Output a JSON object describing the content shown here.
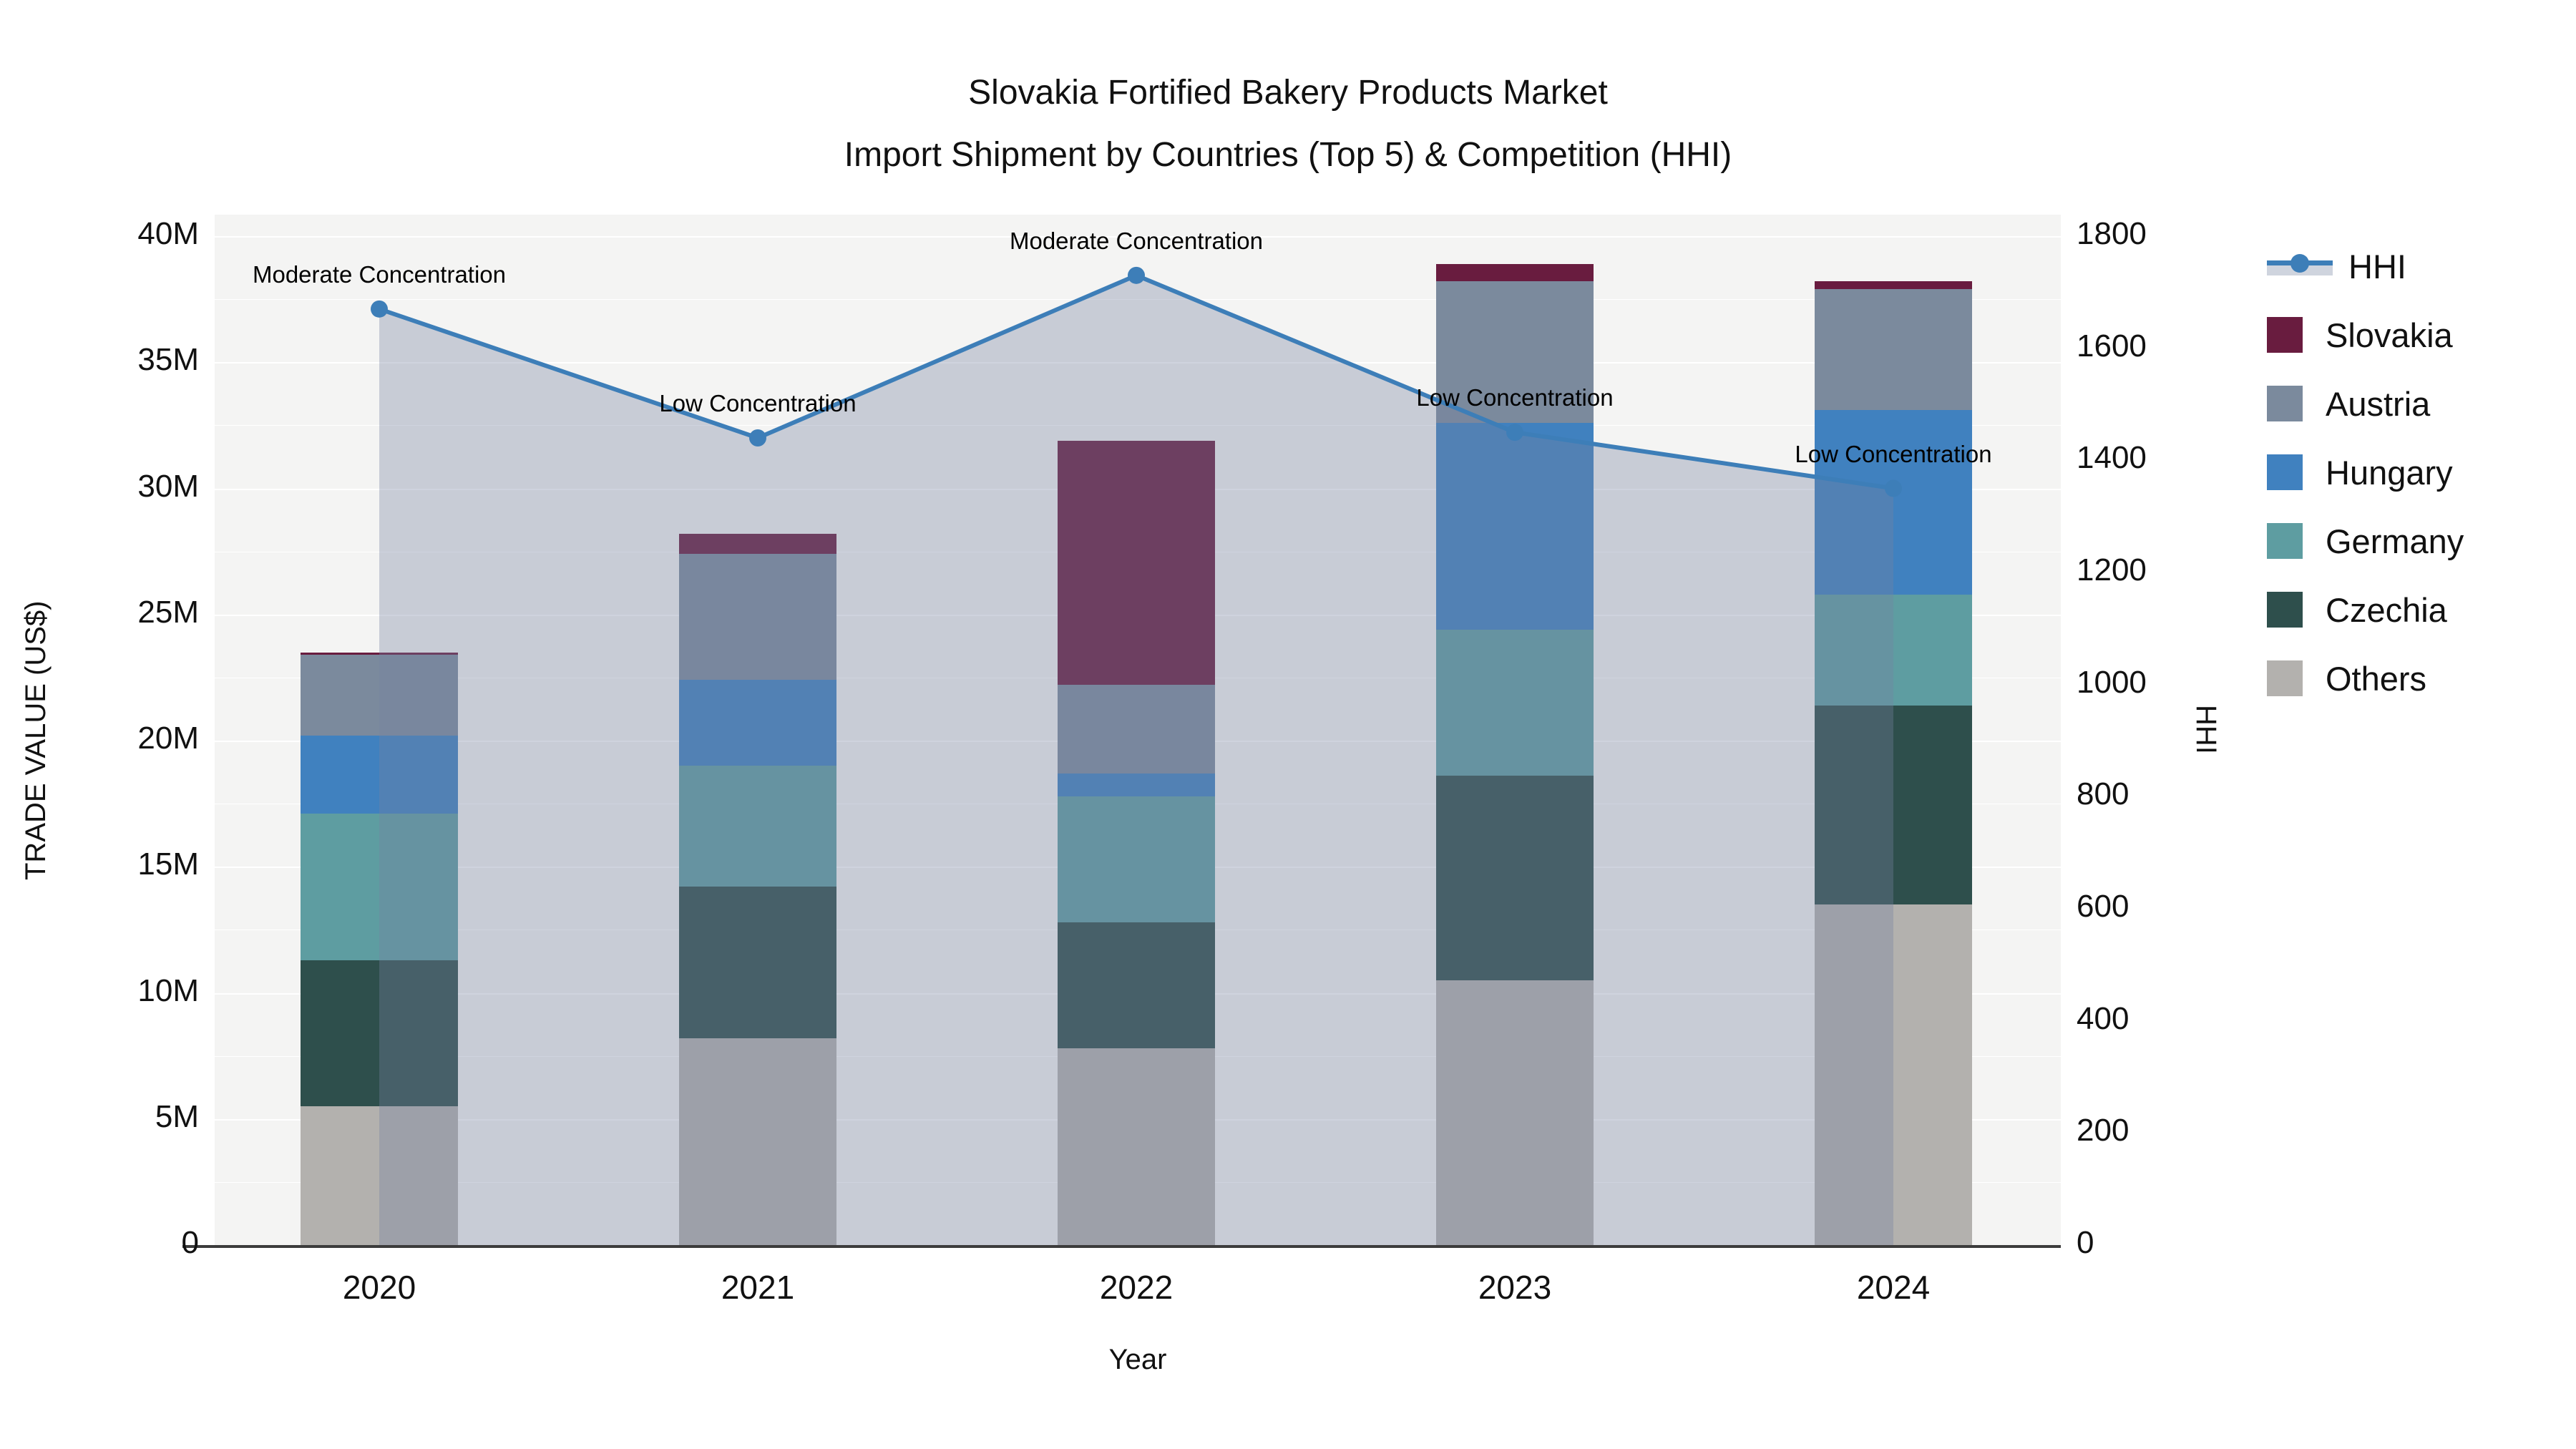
{
  "title": {
    "line1": "Slovakia Fortified Bakery Products Market",
    "line2": "Import Shipment by Countries (Top 5) & Competition (HHI)"
  },
  "axes": {
    "y_left": {
      "title": "TRADE VALUE (US$)",
      "tick_labels": [
        "0",
        "5M",
        "10M",
        "15M",
        "20M",
        "25M",
        "30M",
        "35M",
        "40M"
      ],
      "range_musd": [
        0,
        40
      ]
    },
    "y_right": {
      "title": "HHI",
      "tick_labels": [
        "0",
        "200",
        "400",
        "600",
        "800",
        "1000",
        "1200",
        "1400",
        "1600",
        "1800"
      ],
      "range": [
        0,
        1800
      ]
    },
    "x": {
      "title": "Year"
    }
  },
  "legend": {
    "items": [
      {
        "label": "HHI",
        "kind": "line",
        "color_key": "hhi_line"
      },
      {
        "label": "Slovakia",
        "kind": "swatch",
        "color_key": "slovakia"
      },
      {
        "label": "Austria",
        "kind": "swatch",
        "color_key": "austria"
      },
      {
        "label": "Hungary",
        "kind": "swatch",
        "color_key": "hungary"
      },
      {
        "label": "Germany",
        "kind": "swatch",
        "color_key": "germany"
      },
      {
        "label": "Czechia",
        "kind": "swatch",
        "color_key": "czechia"
      },
      {
        "label": "Others",
        "kind": "swatch",
        "color_key": "others"
      }
    ]
  },
  "chart_data": {
    "type": "combo: stacked bar (left axis) + line with area fill (right axis)",
    "categories": [
      "2020",
      "2021",
      "2022",
      "2023",
      "2024"
    ],
    "bar_unit": "million US$",
    "stack_order_bottom_to_top": [
      "Others",
      "Czechia",
      "Germany",
      "Hungary",
      "Austria",
      "Slovakia"
    ],
    "series": [
      {
        "name": "Slovakia",
        "values": [
          0.1,
          0.8,
          9.7,
          0.7,
          0.3
        ]
      },
      {
        "name": "Austria",
        "values": [
          3.2,
          5.0,
          3.5,
          5.6,
          4.8
        ]
      },
      {
        "name": "Hungary",
        "values": [
          3.1,
          3.4,
          0.9,
          8.2,
          7.3
        ]
      },
      {
        "name": "Germany",
        "values": [
          5.8,
          4.8,
          5.0,
          5.8,
          4.4
        ]
      },
      {
        "name": "Czechia",
        "values": [
          5.8,
          6.0,
          5.0,
          8.1,
          7.9
        ]
      },
      {
        "name": "Others",
        "values": [
          5.5,
          8.2,
          7.8,
          10.5,
          13.5
        ]
      }
    ],
    "bar_totals": [
      23.5,
      28.2,
      31.9,
      38.9,
      38.2
    ],
    "hhi_series": {
      "name": "HHI",
      "values": [
        1670,
        1440,
        1730,
        1450,
        1350
      ]
    },
    "title": "Slovakia Fortified Bakery Products Market — Import Shipment by Countries (Top 5) & Competition (HHI)",
    "xlabel": "Year",
    "ylabel_left": "TRADE VALUE (US$)",
    "ylabel_right": "HHI",
    "ylim_left_musd": [
      0,
      40
    ],
    "ylim_right": [
      0,
      1800
    ],
    "grid": "horizontal white gridlines on light gray plot background",
    "legend_position": "right, outside plot"
  },
  "annotations": [
    {
      "category": "2020",
      "text": "Moderate Concentration"
    },
    {
      "category": "2021",
      "text": "Low Concentration"
    },
    {
      "category": "2022",
      "text": "Moderate Concentration"
    },
    {
      "category": "2023",
      "text": "Low Concentration"
    },
    {
      "category": "2024",
      "text": "Low Concentration"
    }
  ],
  "colors": {
    "slovakia": "#691c3f",
    "austria": "#7b8a9d",
    "hungary": "#4081bf",
    "germany": "#5e9da1",
    "czechia": "#2e4f4c",
    "others": "#b3b1ae",
    "hhi_line": "#3d7eb8",
    "hhi_fill": "rgba(118,130,160,0.35)",
    "plot_bg": "#f4f4f3",
    "gridline": "#ffffff",
    "axis_line": "#3c3c3c",
    "text": "#111111"
  }
}
